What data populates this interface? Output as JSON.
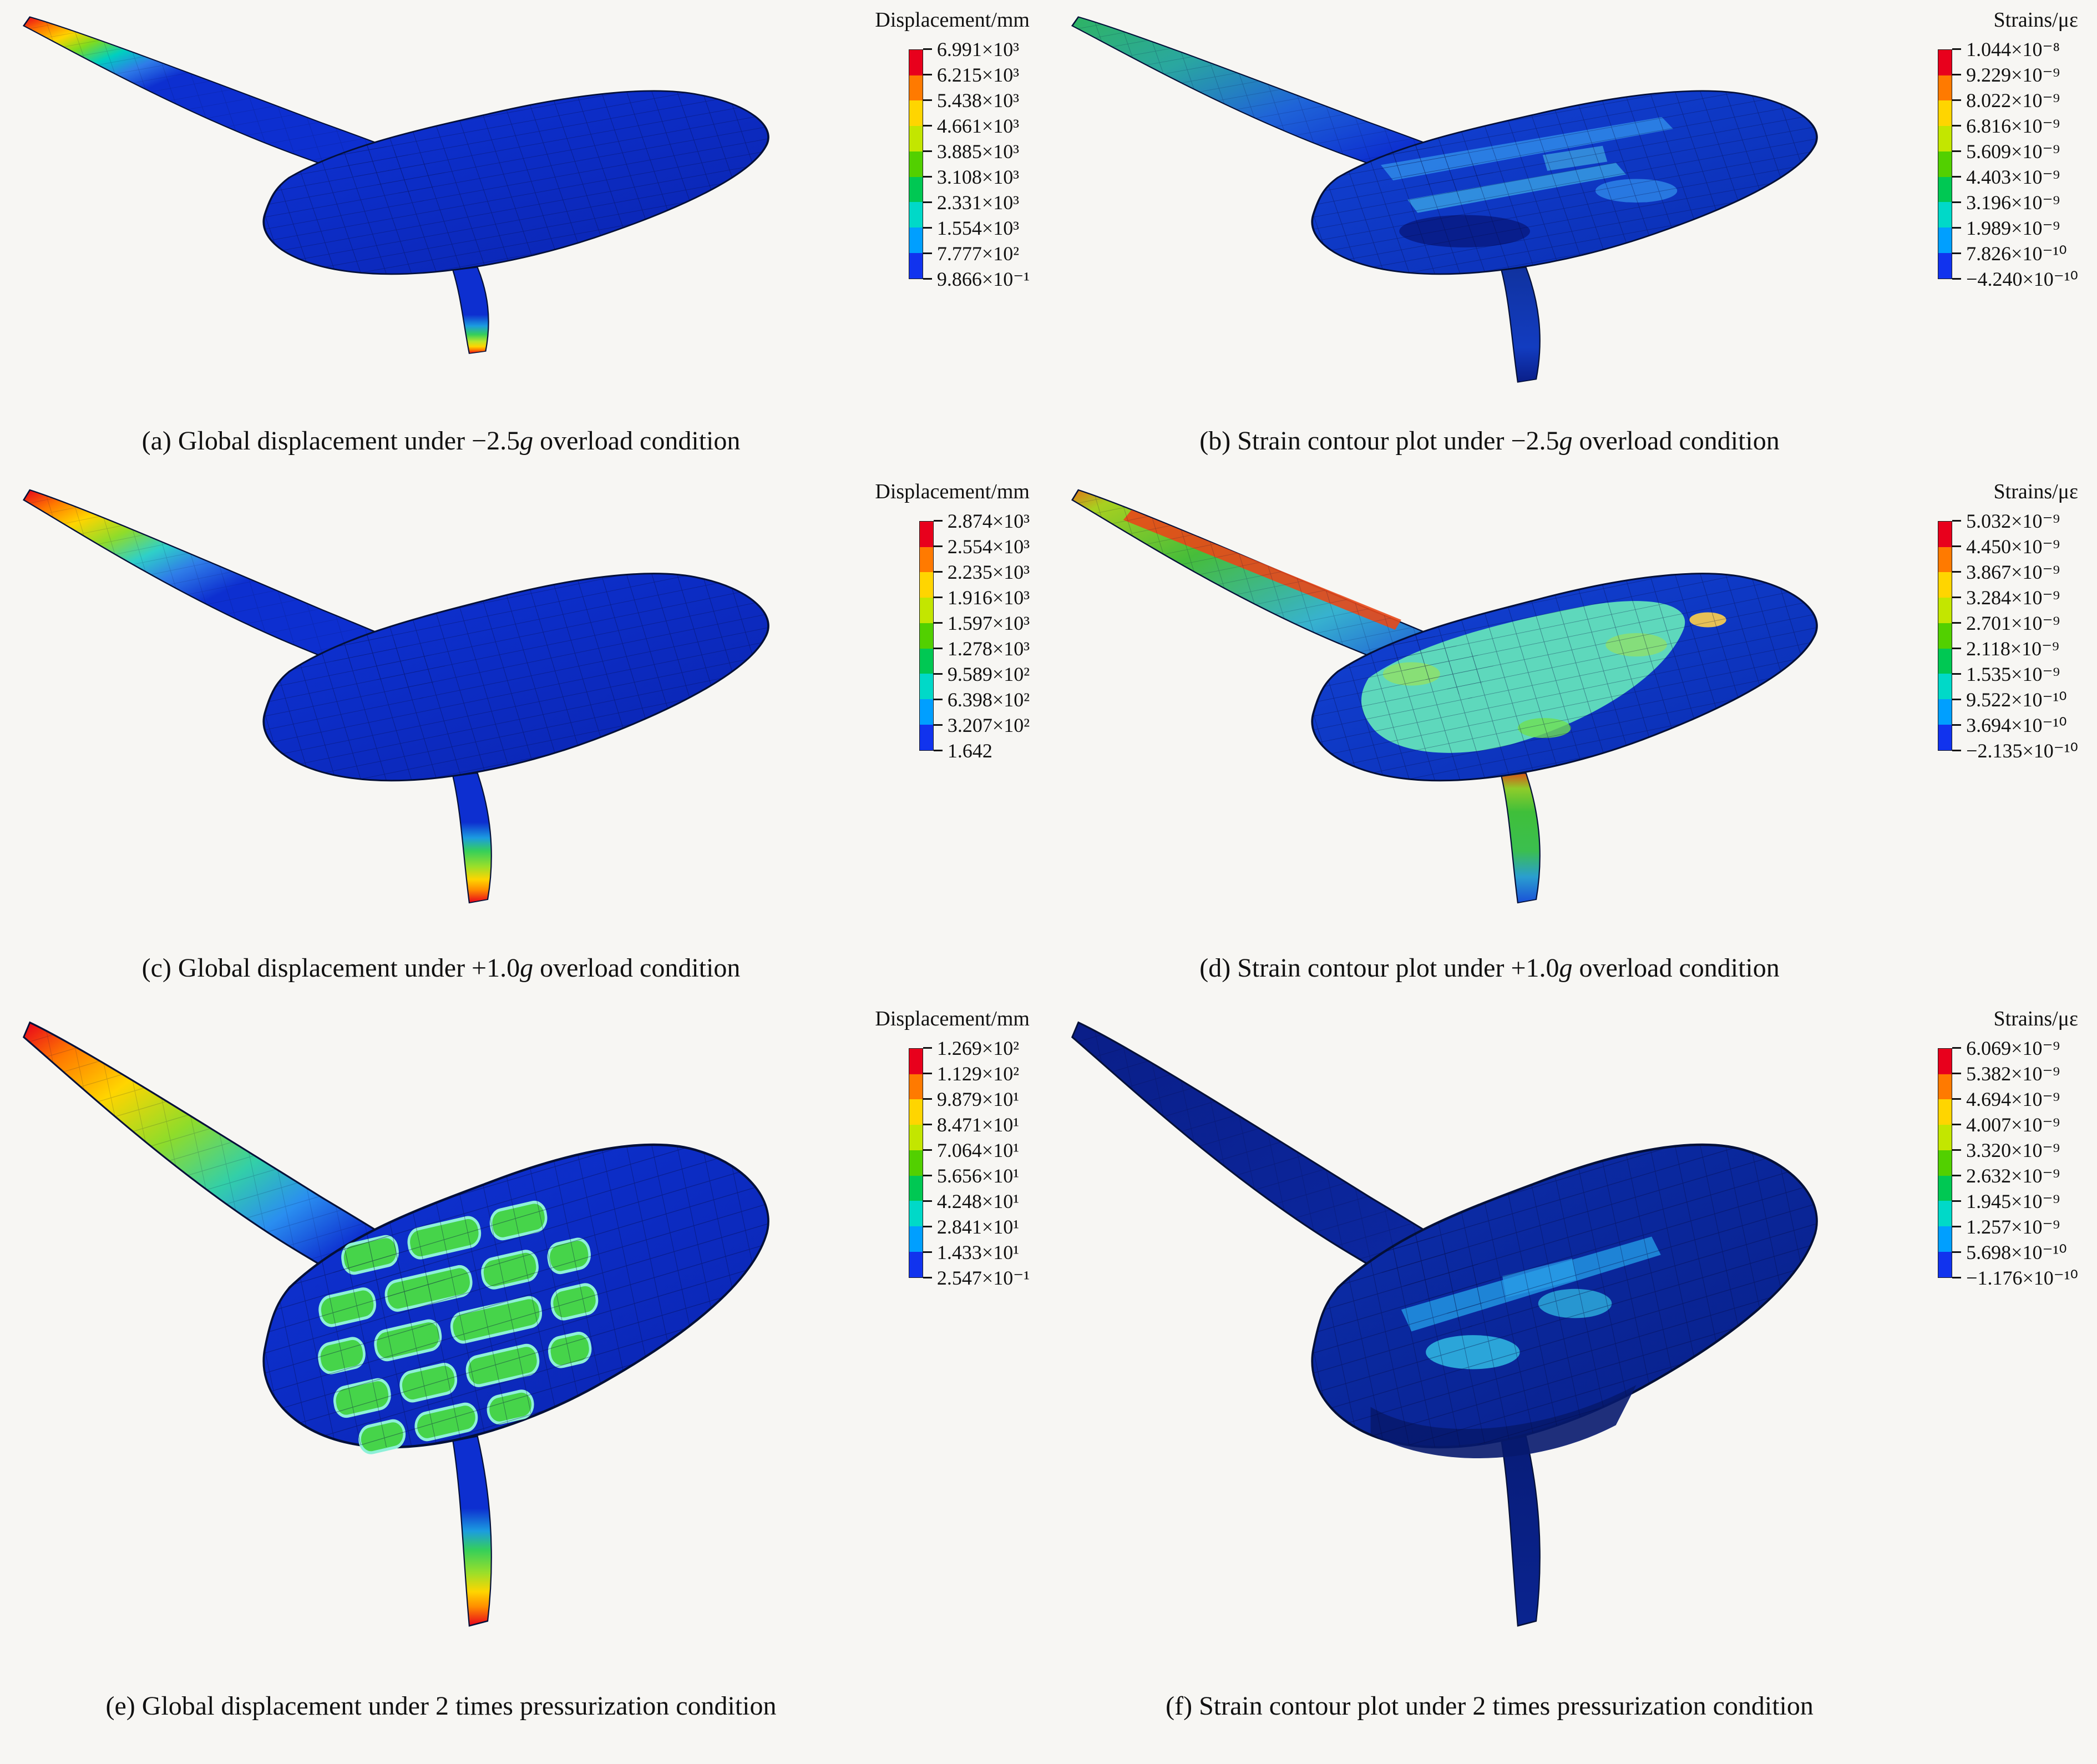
{
  "page": {
    "background": "#f7f6f3"
  },
  "colorbar_colors": [
    "#e8001c",
    "#ff7a00",
    "#ffd500",
    "#c3e600",
    "#52d000",
    "#00c853",
    "#00d9c8",
    "#009fff",
    "#1133ee"
  ],
  "panels": [
    {
      "id": "a",
      "legend_title": "Displacement/mm",
      "values": [
        "6.991×10³",
        "6.215×10³",
        "5.438×10³",
        "4.661×10³",
        "3.885×10³",
        "3.108×10³",
        "2.331×10³",
        "1.554×10³",
        "7.777×10²",
        "9.866×10⁻¹"
      ],
      "caption": {
        "pre": "(a) Global displacement under −2.5",
        "em": "g",
        "post": " overload condition"
      }
    },
    {
      "id": "b",
      "legend_title": "Strains/με",
      "values": [
        "1.044×10⁻⁸",
        "9.229×10⁻⁹",
        "8.022×10⁻⁹",
        "6.816×10⁻⁹",
        "5.609×10⁻⁹",
        "4.403×10⁻⁹",
        "3.196×10⁻⁹",
        "1.989×10⁻⁹",
        "7.826×10⁻¹⁰",
        "−4.240×10⁻¹⁰"
      ],
      "caption": {
        "pre": "(b) Strain contour plot under −2.5",
        "em": "g",
        "post": " overload condition"
      }
    },
    {
      "id": "c",
      "legend_title": "Displacement/mm",
      "values": [
        "2.874×10³",
        "2.554×10³",
        "2.235×10³",
        "1.916×10³",
        "1.597×10³",
        "1.278×10³",
        "9.589×10²",
        "6.398×10²",
        "3.207×10²",
        "1.642"
      ],
      "caption": {
        "pre": "(c) Global displacement under +1.0",
        "em": "g",
        "post": " overload condition"
      }
    },
    {
      "id": "d",
      "legend_title": "Strains/με",
      "values": [
        "5.032×10⁻⁹",
        "4.450×10⁻⁹",
        "3.867×10⁻⁹",
        "3.284×10⁻⁹",
        "2.701×10⁻⁹",
        "2.118×10⁻⁹",
        "1.535×10⁻⁹",
        "9.522×10⁻¹⁰",
        "3.694×10⁻¹⁰",
        "−2.135×10⁻¹⁰"
      ],
      "caption": {
        "pre": "(d) Strain contour plot under +1.0",
        "em": "g",
        "post": " overload condition"
      }
    },
    {
      "id": "e",
      "legend_title": "Displacement/mm",
      "values": [
        "1.269×10²",
        "1.129×10²",
        "9.879×10¹",
        "8.471×10¹",
        "7.064×10¹",
        "5.656×10¹",
        "4.248×10¹",
        "2.841×10¹",
        "1.433×10¹",
        "2.547×10⁻¹"
      ],
      "caption": {
        "pre": "(e) Global displacement under 2 times pressurization condition",
        "em": "",
        "post": ""
      }
    },
    {
      "id": "f",
      "legend_title": "Strains/με",
      "values": [
        "6.069×10⁻⁹",
        "5.382×10⁻⁹",
        "4.694×10⁻⁹",
        "4.007×10⁻⁹",
        "3.320×10⁻⁹",
        "2.632×10⁻⁹",
        "1.945×10⁻⁹",
        "1.257×10⁻⁹",
        "5.698×10⁻¹⁰",
        "−1.176×10⁻¹⁰"
      ],
      "caption": {
        "pre": "(f) Strain contour plot under 2 times pressurization condition",
        "em": "",
        "post": ""
      }
    }
  ]
}
